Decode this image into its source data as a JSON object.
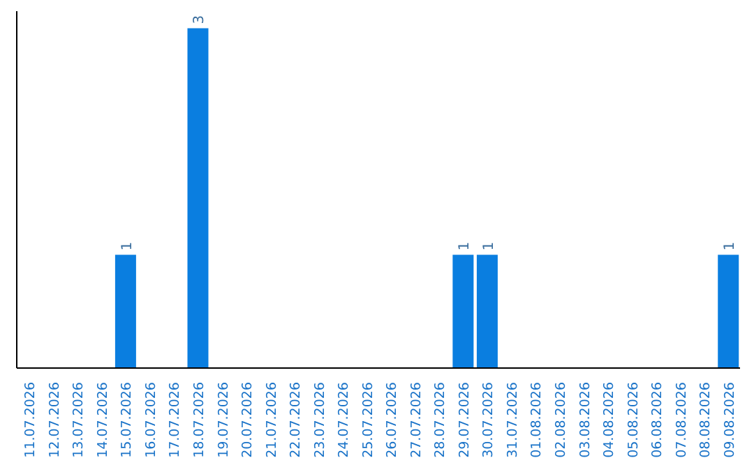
{
  "chart_data": {
    "type": "bar",
    "categories": [
      "11.07.2026",
      "12.07.2026",
      "13.07.2026",
      "14.07.2026",
      "15.07.2026",
      "16.07.2026",
      "17.07.2026",
      "18.07.2026",
      "19.07.2026",
      "20.07.2026",
      "21.07.2026",
      "22.07.2026",
      "23.07.2026",
      "24.07.2026",
      "25.07.2026",
      "26.07.2026",
      "27.07.2026",
      "28.07.2026",
      "29.07.2026",
      "30.07.2026",
      "31.07.2026",
      "01.08.2026",
      "02.08.2026",
      "03.08.2026",
      "04.08.2026",
      "05.08.2026",
      "06.08.2026",
      "07.08.2026",
      "08.08.2026",
      "09.08.2026"
    ],
    "values": [
      0,
      0,
      0,
      0,
      1,
      0,
      0,
      3,
      0,
      0,
      0,
      0,
      0,
      0,
      0,
      0,
      0,
      0,
      1,
      1,
      0,
      0,
      0,
      0,
      0,
      0,
      0,
      0,
      0,
      1
    ],
    "value_labels": [
      null,
      null,
      null,
      null,
      "1",
      null,
      null,
      "3",
      null,
      null,
      null,
      null,
      null,
      null,
      null,
      null,
      null,
      null,
      "1",
      "1",
      null,
      null,
      null,
      null,
      null,
      null,
      null,
      null,
      null,
      "1"
    ],
    "color": "#0a7ee0"
  }
}
